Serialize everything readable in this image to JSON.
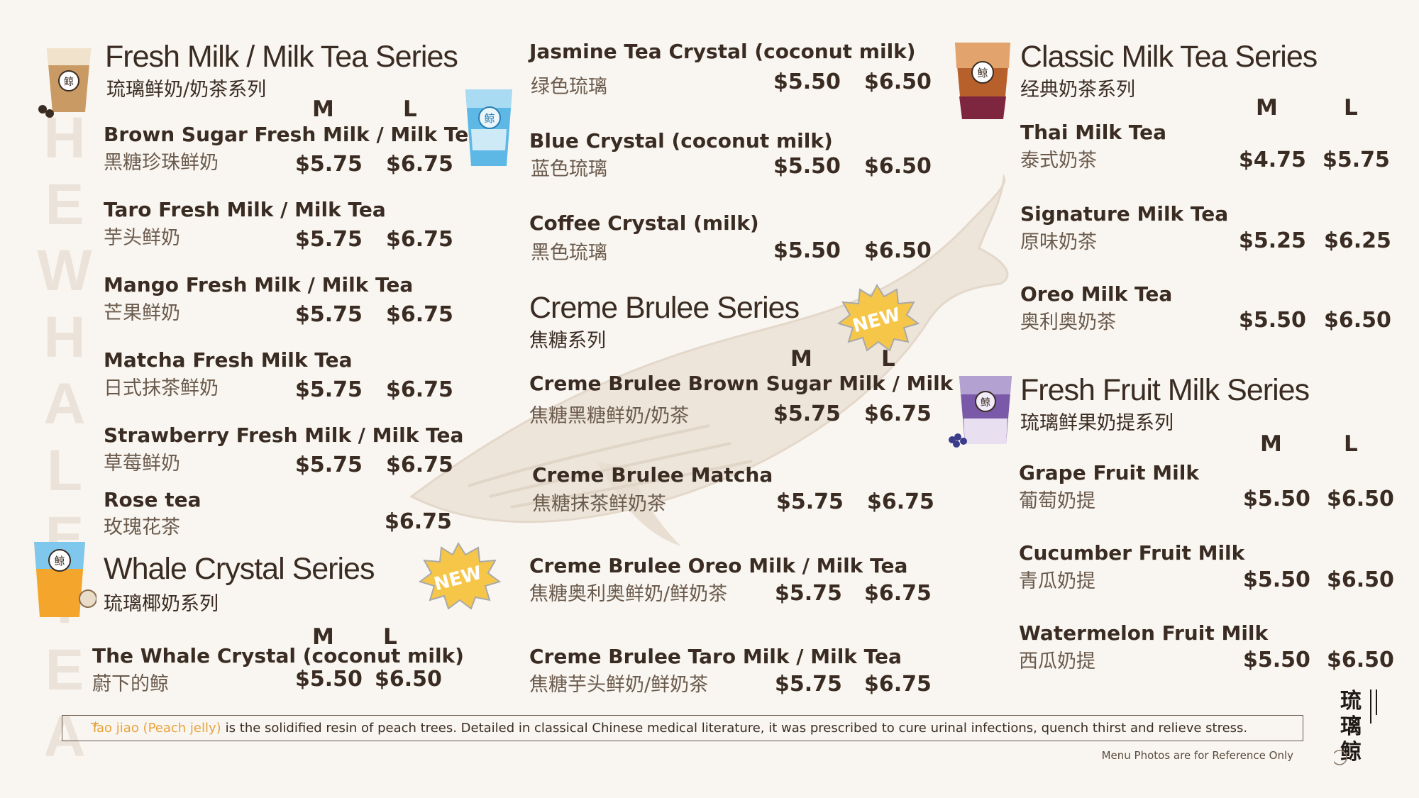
{
  "watermark": "THE WHALE TEA",
  "sizes": {
    "m": "M",
    "l": "L"
  },
  "fresh_milk": {
    "title": "Fresh Milk / Milk Tea Series",
    "subtitle": "琉璃鲜奶/奶茶系列",
    "items": [
      {
        "en": "Brown Sugar Fresh Milk / Milk Tea",
        "zh": "黑糖珍珠鲜奶",
        "m": "$5.75",
        "l": "$6.75"
      },
      {
        "en": "Taro Fresh Milk / Milk Tea",
        "zh": "芋头鲜奶",
        "m": "$5.75",
        "l": "$6.75"
      },
      {
        "en": "Mango Fresh Milk / Milk Tea",
        "zh": "芒果鲜奶",
        "m": "$5.75",
        "l": "$6.75"
      },
      {
        "en": "Matcha Fresh Milk Tea",
        "zh": "日式抹茶鲜奶",
        "m": "$5.75",
        "l": "$6.75"
      },
      {
        "en": "Strawberry Fresh Milk / Milk  Tea",
        "zh": "草莓鲜奶",
        "m": "$5.75",
        "l": "$6.75"
      },
      {
        "en": "Rose tea",
        "zh": "玫瑰花茶",
        "l": "$6.75"
      }
    ]
  },
  "whale_crystal": {
    "title": "Whale Crystal Series",
    "subtitle": "琉璃椰奶系列",
    "badge": "NEW",
    "items": [
      {
        "en": "The Whale Crystal (coconut milk)",
        "zh": "蔚下的鲸",
        "m": "$5.50",
        "l": "$6.50"
      }
    ]
  },
  "crystal_column": {
    "items": [
      {
        "en": "Jasmine Tea Crystal (coconut milk)",
        "zh": "绿色琉璃",
        "m": "$5.50",
        "l": "$6.50"
      },
      {
        "en": "Blue Crystal (coconut milk)",
        "zh": "蓝色琉璃",
        "m": "$5.50",
        "l": "$6.50"
      },
      {
        "en": "Coffee Crystal (milk)",
        "zh": "黑色琉璃",
        "m": "$5.50",
        "l": "$6.50"
      }
    ]
  },
  "creme_brulee": {
    "title": "Creme Brulee Series",
    "subtitle": "焦糖系列",
    "badge": "NEW",
    "items": [
      {
        "en": "Creme Brulee Brown Sugar Milk / Milk Tea",
        "zh": "焦糖黑糖鲜奶/奶茶",
        "m": "$5.75",
        "l": "$6.75"
      },
      {
        "en": "Creme Brulee Matcha",
        "zh": "焦糖抹茶鲜奶茶",
        "m": "$5.75",
        "l": "$6.75"
      },
      {
        "en": "Creme Brulee Oreo Milk / Milk Tea",
        "zh": "焦糖奥利奥鲜奶/鲜奶茶",
        "m": "$5.75",
        "l": "$6.75"
      },
      {
        "en": "Creme Brulee Taro Milk / Milk Tea",
        "zh": "焦糖芋头鲜奶/鲜奶茶",
        "m": "$5.75",
        "l": "$6.75"
      }
    ]
  },
  "classic": {
    "title": "Classic Milk Tea Series",
    "subtitle": "经典奶茶系列",
    "items": [
      {
        "en": "Thai Milk Tea",
        "zh": "泰式奶茶",
        "m": "$4.75",
        "l": "$5.75"
      },
      {
        "en": "Signature Milk Tea",
        "zh": "原味奶茶",
        "m": "$5.25",
        "l": "$6.25"
      },
      {
        "en": "Oreo Milk Tea",
        "zh": "奥利奥奶茶",
        "m": "$5.50",
        "l": "$6.50"
      }
    ]
  },
  "fruit": {
    "title": "Fresh Fruit Milk Series",
    "subtitle": "琉璃鲜果奶提系列",
    "items": [
      {
        "en": "Grape Fruit Milk",
        "zh": "葡萄奶提",
        "m": "$5.50",
        "l": "$6.50"
      },
      {
        "en": "Cucumber  Fruit Milk",
        "zh": "青瓜奶提",
        "m": "$5.50",
        "l": "$6.50"
      },
      {
        "en": "Watermelon Fruit Milk",
        "zh": "西瓜奶提",
        "m": "$5.50",
        "l": "$6.50"
      }
    ]
  },
  "footnote": {
    "star": "*",
    "highlight": "Tao jiao (Peach jelly)",
    "text": "is the solidified resin of peach trees. Detailed in classical Chinese medical literature, it was prescribed to cure urinal infections, quench thirst and relieve stress.",
    "reference": "Menu Photos are for Reference Only"
  },
  "logo_text": "琉璃鲸",
  "colors": {
    "text": "#3a2c22",
    "accent": "#e8a33c",
    "background": "#f9f6f1"
  }
}
